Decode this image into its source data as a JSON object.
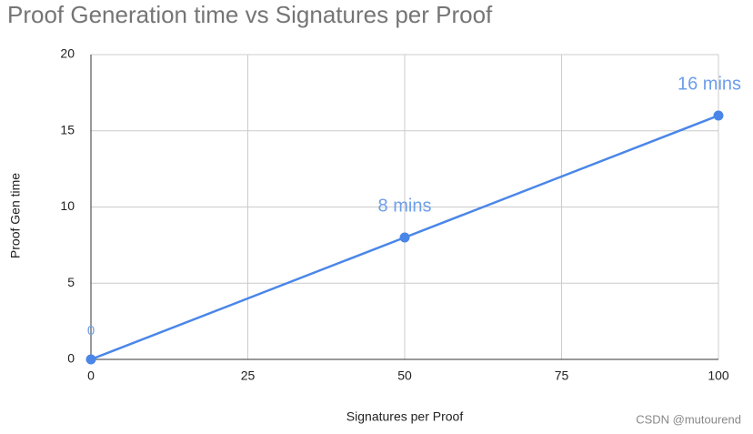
{
  "chart_data": {
    "type": "line",
    "title": "Proof Generation time vs Signatures per Proof",
    "x_label": "Signatures per Proof",
    "y_label": "Proof Gen time",
    "x": [
      0,
      50,
      100
    ],
    "values": [
      0,
      8,
      16
    ],
    "value_labels": [
      "0",
      "8 mins",
      "16 mins"
    ],
    "color": "#4a86e8",
    "label_color": "#6d9eeb",
    "xlim": [
      0,
      100
    ],
    "xticks": [
      0,
      25,
      50,
      75,
      100
    ],
    "ylim": [
      0,
      20
    ],
    "yticks": [
      0,
      5,
      10,
      15,
      20
    ],
    "grid": true
  },
  "watermark": "CSDN @mutourend"
}
